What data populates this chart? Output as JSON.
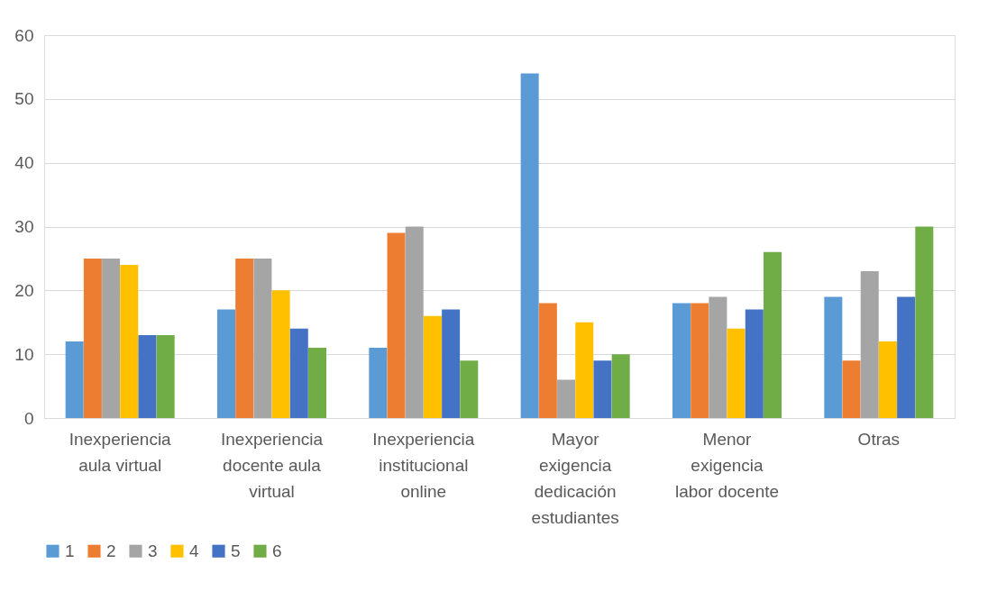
{
  "chart_data": {
    "type": "bar",
    "categories": [
      "Inexperiencia aula virtual",
      "Inexperiencia docente aula virtual",
      "Inexperiencia institucional online",
      "Mayor exigencia dedicación estudiantes",
      "Menor exigencia labor docente",
      "Otras"
    ],
    "series": [
      {
        "name": "1",
        "color": "#5b9bd5",
        "values": [
          12,
          17,
          11,
          54,
          18,
          19
        ]
      },
      {
        "name": "2",
        "color": "#ed7d31",
        "values": [
          25,
          25,
          29,
          18,
          18,
          9
        ]
      },
      {
        "name": "3",
        "color": "#a5a5a5",
        "values": [
          25,
          25,
          30,
          6,
          19,
          23
        ]
      },
      {
        "name": "4",
        "color": "#ffc000",
        "values": [
          24,
          20,
          16,
          15,
          14,
          12
        ]
      },
      {
        "name": "5",
        "color": "#4472c4",
        "values": [
          13,
          14,
          17,
          9,
          17,
          19
        ]
      },
      {
        "name": "6",
        "color": "#70ad47",
        "values": [
          13,
          11,
          9,
          10,
          26,
          30
        ]
      }
    ],
    "ylim": [
      0,
      60
    ],
    "yticks": [
      0,
      10,
      20,
      30,
      40,
      50,
      60
    ],
    "grid": "y",
    "legend": "bottom"
  }
}
